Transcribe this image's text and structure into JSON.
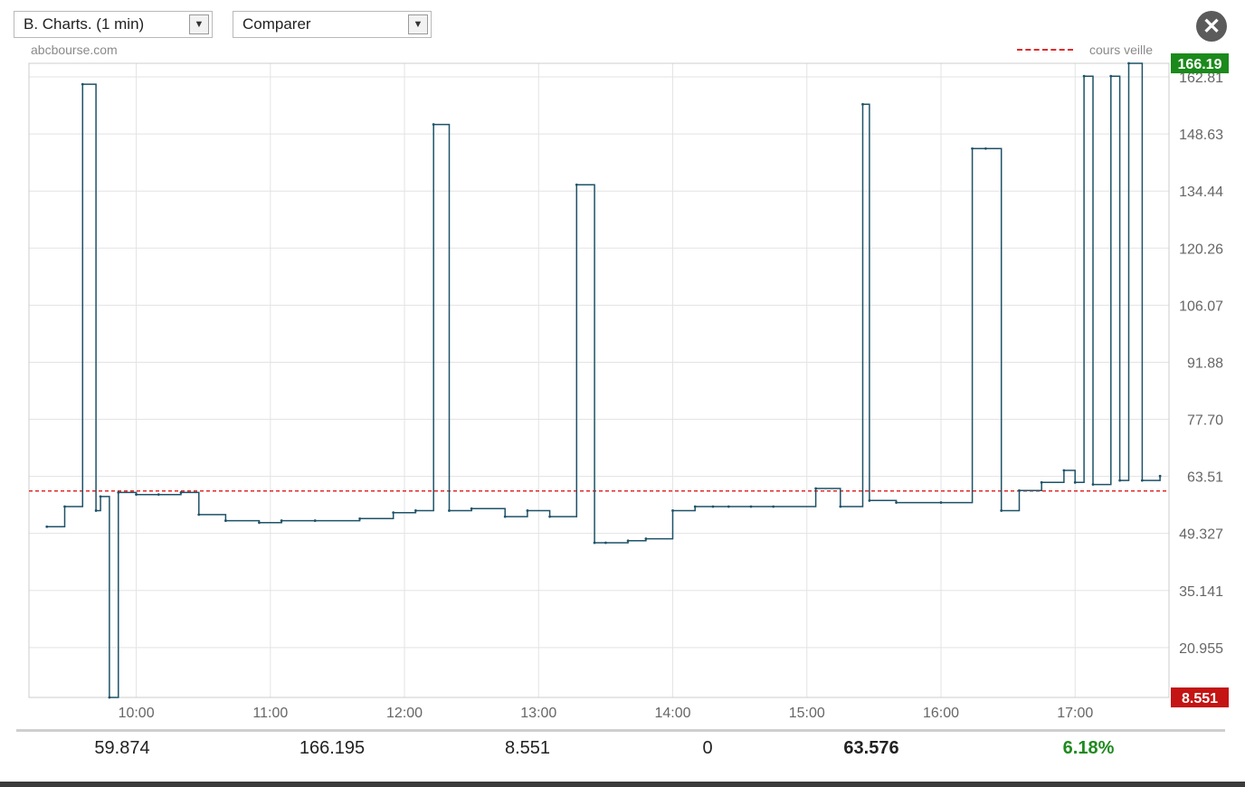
{
  "toolbar": {
    "chart_type_label": "B. Charts. (1 min)",
    "compare_label": "Comparer",
    "close_symbol": "✕"
  },
  "source_label": "abcbourse.com",
  "legend_label": "cours veille",
  "badges": {
    "high": "166.19",
    "low": "8.551",
    "high_color": "#1b8a1b",
    "low_color": "#c41414"
  },
  "stats": [
    "59.874",
    "166.195",
    "8.551",
    "0",
    "63.576",
    "6.18%"
  ],
  "colors": {
    "line": "#1e5268",
    "reference": "#e02a2a",
    "grid": "#e3e3e3"
  },
  "chart_data": {
    "type": "line",
    "xlabel": "",
    "ylabel": "",
    "x_ticks": [
      "10:00",
      "11:00",
      "12:00",
      "13:00",
      "14:00",
      "15:00",
      "16:00",
      "17:00"
    ],
    "y_ticks": [
      "162.81",
      "148.63",
      "134.44",
      "120.26",
      "106.07",
      "91.88",
      "77.70",
      "63.51",
      "49.327",
      "35.141",
      "20.955"
    ],
    "ylim": [
      8.551,
      166.195
    ],
    "xlim": [
      "09:12",
      "17:42"
    ],
    "reference_line": {
      "name": "cours veille",
      "value": 59.874
    },
    "grid": true,
    "legend": "top-right",
    "series": [
      {
        "x": [
          "09:20",
          "09:28",
          "09:36",
          "09:42",
          "09:44",
          "09:48",
          "09:52",
          "10:00",
          "10:10",
          "10:20",
          "10:28",
          "10:40",
          "10:55",
          "11:05",
          "11:20",
          "11:40",
          "11:55",
          "12:05",
          "12:13",
          "12:20",
          "12:30",
          "12:45",
          "12:55",
          "13:05",
          "13:17",
          "13:25",
          "13:30",
          "13:40",
          "13:48",
          "14:00",
          "14:10",
          "14:18",
          "14:25",
          "14:35",
          "14:45",
          "15:04",
          "15:15",
          "15:25",
          "15:28",
          "15:40",
          "16:00",
          "16:14",
          "16:20",
          "16:27",
          "16:35",
          "16:45",
          "16:55",
          "17:00",
          "17:04",
          "17:08",
          "17:16",
          "17:20",
          "17:24",
          "17:30",
          "17:38"
        ],
        "y": [
          51.0,
          56.0,
          161.0,
          55.0,
          58.5,
          8.551,
          59.5,
          59.0,
          59.0,
          59.5,
          54.0,
          52.5,
          52.0,
          52.5,
          52.5,
          53.0,
          54.5,
          55.0,
          151.0,
          55.0,
          55.5,
          53.5,
          55.0,
          53.5,
          136.0,
          47.0,
          47.0,
          47.5,
          48.0,
          55.0,
          56.0,
          56.0,
          56.0,
          56.0,
          56.0,
          60.5,
          56.0,
          156.0,
          57.5,
          57.0,
          57.0,
          145.0,
          145.0,
          55.0,
          60.0,
          62.0,
          65.0,
          62.0,
          163.0,
          61.5,
          163.0,
          62.5,
          166.195,
          62.5,
          63.576
        ]
      }
    ]
  }
}
